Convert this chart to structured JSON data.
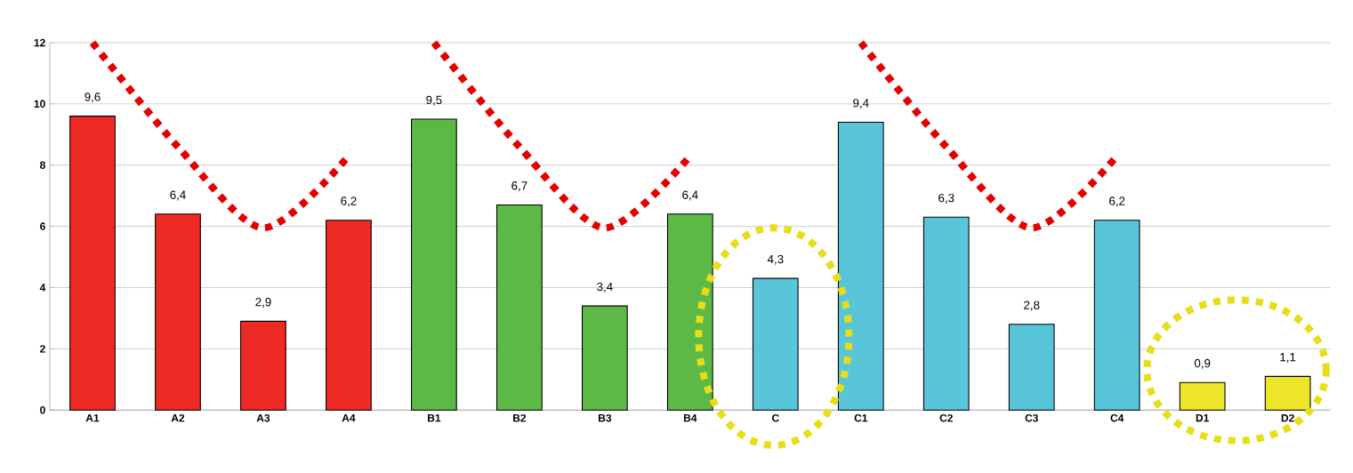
{
  "chart_data": {
    "type": "bar",
    "categories": [
      "A1",
      "A2",
      "A3",
      "A4",
      "B1",
      "B2",
      "B3",
      "B4",
      "C",
      "C1",
      "C2",
      "C3",
      "C4",
      "D1",
      "D2"
    ],
    "series": [
      {
        "values": [
          9.6,
          6.4,
          2.9,
          6.2,
          9.5,
          6.7,
          3.4,
          6.4,
          4.3,
          9.4,
          6.3,
          2.8,
          6.2,
          0.9,
          1.1
        ],
        "value_labels": [
          "9,6",
          "6,4",
          "2,9",
          "6,2",
          "9,5",
          "6,7",
          "3,4",
          "6,4",
          "4,3",
          "9,4",
          "6,3",
          "2,8",
          "6,2",
          "0,9",
          "1,1"
        ],
        "colors": [
          "#ee2a24",
          "#ee2a24",
          "#ee2a24",
          "#ee2a24",
          "#5cb946",
          "#5cb946",
          "#5cb946",
          "#5cb946",
          "#58c5d8",
          "#58c5d8",
          "#58c5d8",
          "#58c5d8",
          "#58c5d8",
          "#ede629",
          "#ede629"
        ]
      },
      {
        "type": "line",
        "color": "#e50000",
        "line_style": "dotted",
        "values": [
          12,
          8.6,
          5.95,
          8.3,
          null,
          null,
          null,
          null,
          null,
          null,
          null,
          null,
          null,
          null,
          null
        ]
      },
      {
        "type": "line",
        "color": "#e50000",
        "line_style": "dotted",
        "values": [
          null,
          null,
          null,
          null,
          12,
          8.6,
          5.95,
          8.3,
          null,
          null,
          null,
          null,
          null,
          null,
          null
        ]
      },
      {
        "type": "line",
        "color": "#e50000",
        "line_style": "dotted",
        "values": [
          null,
          null,
          null,
          null,
          null,
          null,
          null,
          null,
          null,
          12,
          8.6,
          5.95,
          8.3,
          null,
          null
        ]
      }
    ],
    "ylim": [
      0,
      12
    ],
    "yticks": [
      0,
      2,
      4,
      6,
      8,
      10,
      12
    ],
    "grid": "y"
  }
}
